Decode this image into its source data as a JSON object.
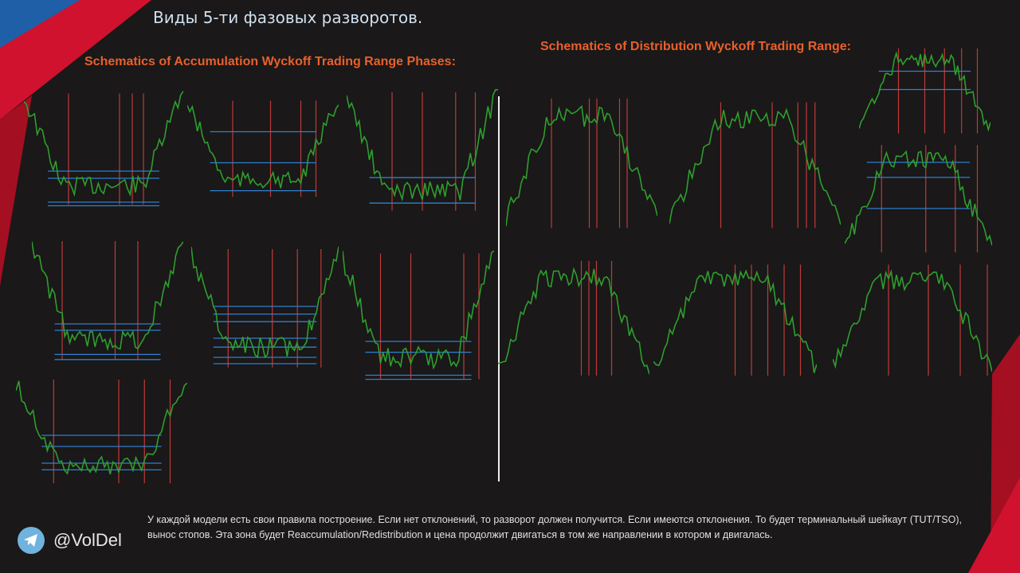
{
  "title": "Виды 5-ти фазовых разворотов.",
  "accumulation_header": "Schematics of Accumulation Wyckoff Trading Range Phases:",
  "distribution_header": "Schematics of Distribution Wyckoff Trading Range:",
  "footer_text": "У каждой модели есть свои правила построение. Если нет отклонений, то разворот должен получится. Если имеются отклонения. То будет терминальный шейкаут (TUT/TSO), вынос стопов. Эта зона будет Reaccumulation/Redistribution и цена продолжит двигаться в том же направлении в котором и двигалась.",
  "author_handle": "@VolDel",
  "icons": {
    "telegram": "telegram-icon"
  },
  "colors": {
    "background": "#1a1818",
    "price_line": "#2e9e2e",
    "range_line": "#2f7fd0",
    "phase_line": "#c03a3a",
    "header": "#e8602c",
    "corner_red": "#d0122e",
    "corner_blue": "#1f5fa8"
  }
}
